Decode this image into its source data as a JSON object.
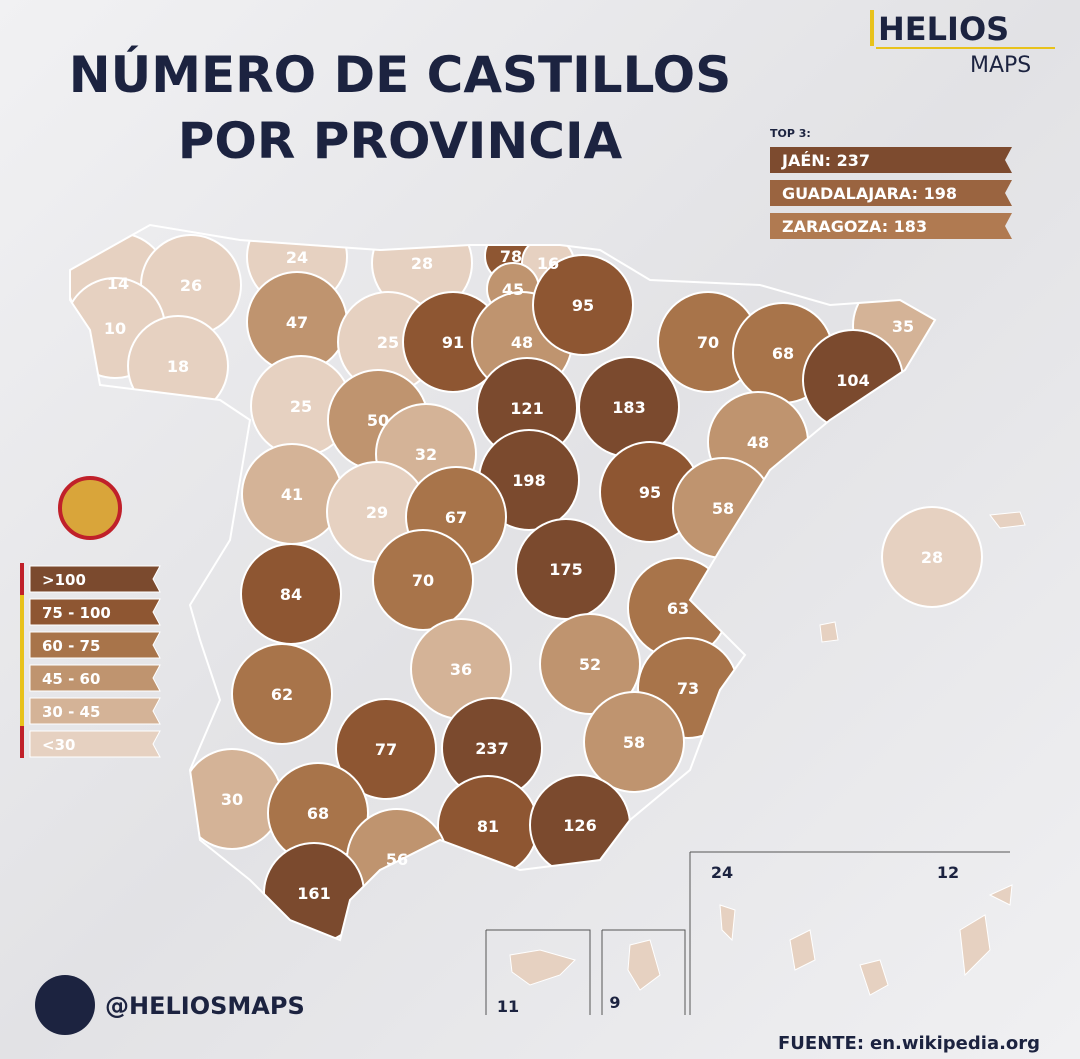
{
  "header": {
    "title_line1": "NÚMERO DE CASTILLOS",
    "title_line2": "POR PROVINCIA",
    "brand": "HELIOS",
    "brand_sub": "MAPS"
  },
  "top3": {
    "title": "TOP 3:",
    "items": [
      {
        "text": "JAÉN: 237",
        "color": "#7d4b2f"
      },
      {
        "text": "GUADALAJARA: 198",
        "color": "#9a6440"
      },
      {
        "text": "ZARAGOZA: 183",
        "color": "#b07a51"
      }
    ]
  },
  "legend": [
    {
      "label": ">100",
      "color": "#7b4a2e"
    },
    {
      "label": "75 - 100",
      "color": "#8e5632"
    },
    {
      "label": "60 - 75",
      "color": "#a8744a"
    },
    {
      "label": "45 - 60",
      "color": "#bf946f"
    },
    {
      "label": "30 - 45",
      "color": "#d4b397"
    },
    {
      "label": "<30",
      "color": "#e6d1c1"
    }
  ],
  "map": {
    "provinces": [
      {
        "value": 14,
        "color": "#e6d1c1"
      },
      {
        "value": 26,
        "color": "#e6d1c1"
      },
      {
        "value": 10,
        "color": "#e6d1c1"
      },
      {
        "value": 18,
        "color": "#e6d1c1"
      },
      {
        "value": 24,
        "color": "#e6d1c1"
      },
      {
        "value": 47,
        "color": "#bf946f"
      },
      {
        "value": 28,
        "color": "#e6d1c1"
      },
      {
        "value": 78,
        "color": "#8e5632"
      },
      {
        "value": 16,
        "color": "#e6d1c1"
      },
      {
        "value": 45,
        "color": "#bf946f"
      },
      {
        "value": 25,
        "color": "#e6d1c1"
      },
      {
        "value": 91,
        "color": "#8e5632"
      },
      {
        "value": 48,
        "color": "#bf946f"
      },
      {
        "value": 95,
        "color": "#8e5632"
      },
      {
        "value": 70,
        "color": "#a8744a"
      },
      {
        "value": 68,
        "color": "#a8744a"
      },
      {
        "value": 35,
        "color": "#d4b397"
      },
      {
        "value": 104,
        "color": "#7b4a2e"
      },
      {
        "value": 25,
        "color": "#e6d1c1"
      },
      {
        "value": 50,
        "color": "#bf946f"
      },
      {
        "value": 121,
        "color": "#7b4a2e"
      },
      {
        "value": 183,
        "color": "#7b4a2e"
      },
      {
        "value": 32,
        "color": "#d4b397"
      },
      {
        "value": 48,
        "color": "#bf946f"
      },
      {
        "value": 41,
        "color": "#d4b397"
      },
      {
        "value": 29,
        "color": "#e6d1c1"
      },
      {
        "value": 198,
        "color": "#7b4a2e"
      },
      {
        "value": 67,
        "color": "#a8744a"
      },
      {
        "value": 95,
        "color": "#8e5632"
      },
      {
        "value": 58,
        "color": "#bf946f"
      },
      {
        "value": 28,
        "color": "#e6d1c1"
      },
      {
        "value": 84,
        "color": "#8e5632"
      },
      {
        "value": 70,
        "color": "#a8744a"
      },
      {
        "value": 175,
        "color": "#7b4a2e"
      },
      {
        "value": 63,
        "color": "#a8744a"
      },
      {
        "value": 36,
        "color": "#d4b397"
      },
      {
        "value": 52,
        "color": "#bf946f"
      },
      {
        "value": 73,
        "color": "#a8744a"
      },
      {
        "value": 62,
        "color": "#a8744a"
      },
      {
        "value": 77,
        "color": "#8e5632"
      },
      {
        "value": 237,
        "color": "#7b4a2e"
      },
      {
        "value": 58,
        "color": "#bf946f"
      },
      {
        "value": 30,
        "color": "#d4b397"
      },
      {
        "value": 68,
        "color": "#a8744a"
      },
      {
        "value": 81,
        "color": "#8e5632"
      },
      {
        "value": 126,
        "color": "#7b4a2e"
      },
      {
        "value": 56,
        "color": "#bf946f"
      },
      {
        "value": 161,
        "color": "#7b4a2e"
      }
    ],
    "insets": [
      {
        "value": 24
      },
      {
        "value": 12
      },
      {
        "value": 11
      },
      {
        "value": 9
      }
    ]
  },
  "footer": {
    "handle": "@HELIOSMAPS",
    "source_label": "FUENTE:",
    "source": "en.wikipedia.org"
  }
}
